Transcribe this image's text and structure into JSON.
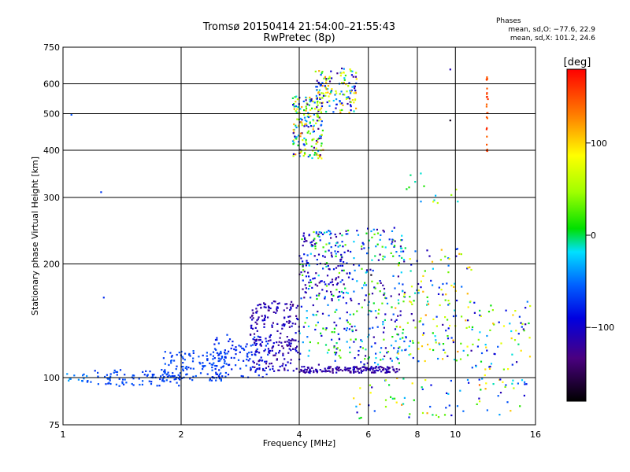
{
  "header": {
    "title_line1": "Tromsø 20150414 21:54:00–21:55:43",
    "title_line2": "RwPretec (8p)"
  },
  "phases": {
    "heading": "Phases",
    "o_line": "mean, sd,O: −77.6, 22.9",
    "x_line": "mean, sd,X: 101.2, 24.6"
  },
  "colorbar": {
    "label": "[deg]",
    "ticks": [
      "100",
      "0",
      "−100"
    ],
    "tick_values": [
      100,
      0,
      -100
    ],
    "range": [
      -180,
      180
    ]
  },
  "chart_data": {
    "type": "scatter",
    "xlabel": "Frequency [MHz]",
    "ylabel": "Stationary phase Virtual Height [km]",
    "xscale": "log",
    "yscale": "log",
    "xlim": [
      1,
      16
    ],
    "ylim": [
      75,
      750
    ],
    "xticks": [
      1,
      2,
      4,
      6,
      8,
      10,
      16
    ],
    "xtick_labels": [
      "1",
      "2",
      "4",
      "6",
      "8",
      "10",
      "16"
    ],
    "yticks": [
      75,
      100,
      200,
      300,
      400,
      500,
      600,
      750
    ],
    "ytick_labels": [
      "75",
      "100",
      "200",
      "300",
      "400",
      "500",
      "600",
      "750"
    ],
    "grid": true,
    "color_by": "phase [deg]",
    "clusters": [
      {
        "x": [
          1.0,
          1.15
        ],
        "y": [
          97,
          103
        ],
        "phase": [
          -60,
          -30
        ],
        "n": 12
      },
      {
        "x": [
          1.15,
          2.0
        ],
        "y": [
          95,
          105
        ],
        "phase": [
          -75,
          -55
        ],
        "n": 90
      },
      {
        "x": [
          1.8,
          2.6
        ],
        "y": [
          98,
          118
        ],
        "phase": [
          -75,
          -55
        ],
        "n": 120
      },
      {
        "x": [
          2.4,
          3.4
        ],
        "y": [
          100,
          130
        ],
        "phase": [
          -85,
          -60
        ],
        "n": 110
      },
      {
        "x": [
          3.0,
          4.0
        ],
        "y": [
          104,
          160
        ],
        "phase": [
          -130,
          -90
        ],
        "n": 220
      },
      {
        "x": [
          4.0,
          7.2
        ],
        "y": [
          103,
          107
        ],
        "phase": [
          -130,
          -100
        ],
        "n": 160
      },
      {
        "x": [
          4.0,
          7.5
        ],
        "y": [
          108,
          250
        ],
        "phase": [
          -130,
          40
        ],
        "n": 380
      },
      {
        "x": [
          4.0,
          5.2
        ],
        "y": [
          160,
          240
        ],
        "phase": [
          -130,
          -80
        ],
        "n": 90
      },
      {
        "x": [
          7.0,
          11.0
        ],
        "y": [
          110,
          220
        ],
        "phase": [
          -120,
          130
        ],
        "n": 160
      },
      {
        "x": [
          11.0,
          15.5
        ],
        "y": [
          95,
          160
        ],
        "phase": [
          -120,
          110
        ],
        "n": 80
      },
      {
        "x": [
          5.5,
          15.5
        ],
        "y": [
          78,
          100
        ],
        "phase": [
          -120,
          140
        ],
        "n": 70
      },
      {
        "x": [
          3.85,
          4.6
        ],
        "y": [
          380,
          560
        ],
        "phase": [
          -140,
          130
        ],
        "n": 180
      },
      {
        "x": [
          4.4,
          5.6
        ],
        "y": [
          500,
          660
        ],
        "phase": [
          -130,
          130
        ],
        "n": 150
      },
      {
        "x": [
          7.5,
          10.2
        ],
        "y": [
          290,
          350
        ],
        "phase": [
          -60,
          80
        ],
        "n": 14
      },
      {
        "x": [
          12.0,
          12.1
        ],
        "y": [
          380,
          630
        ],
        "phase": [
          140,
          170
        ],
        "n": 24
      }
    ],
    "isolated_points": [
      {
        "x": 1.05,
        "y": 497,
        "phase": -60
      },
      {
        "x": 1.25,
        "y": 310,
        "phase": -70
      },
      {
        "x": 1.27,
        "y": 163,
        "phase": -75
      },
      {
        "x": 9.7,
        "y": 480,
        "phase": -170
      },
      {
        "x": 9.7,
        "y": 655,
        "phase": -110
      },
      {
        "x": 6.1,
        "y": 187,
        "phase": -170
      }
    ]
  }
}
